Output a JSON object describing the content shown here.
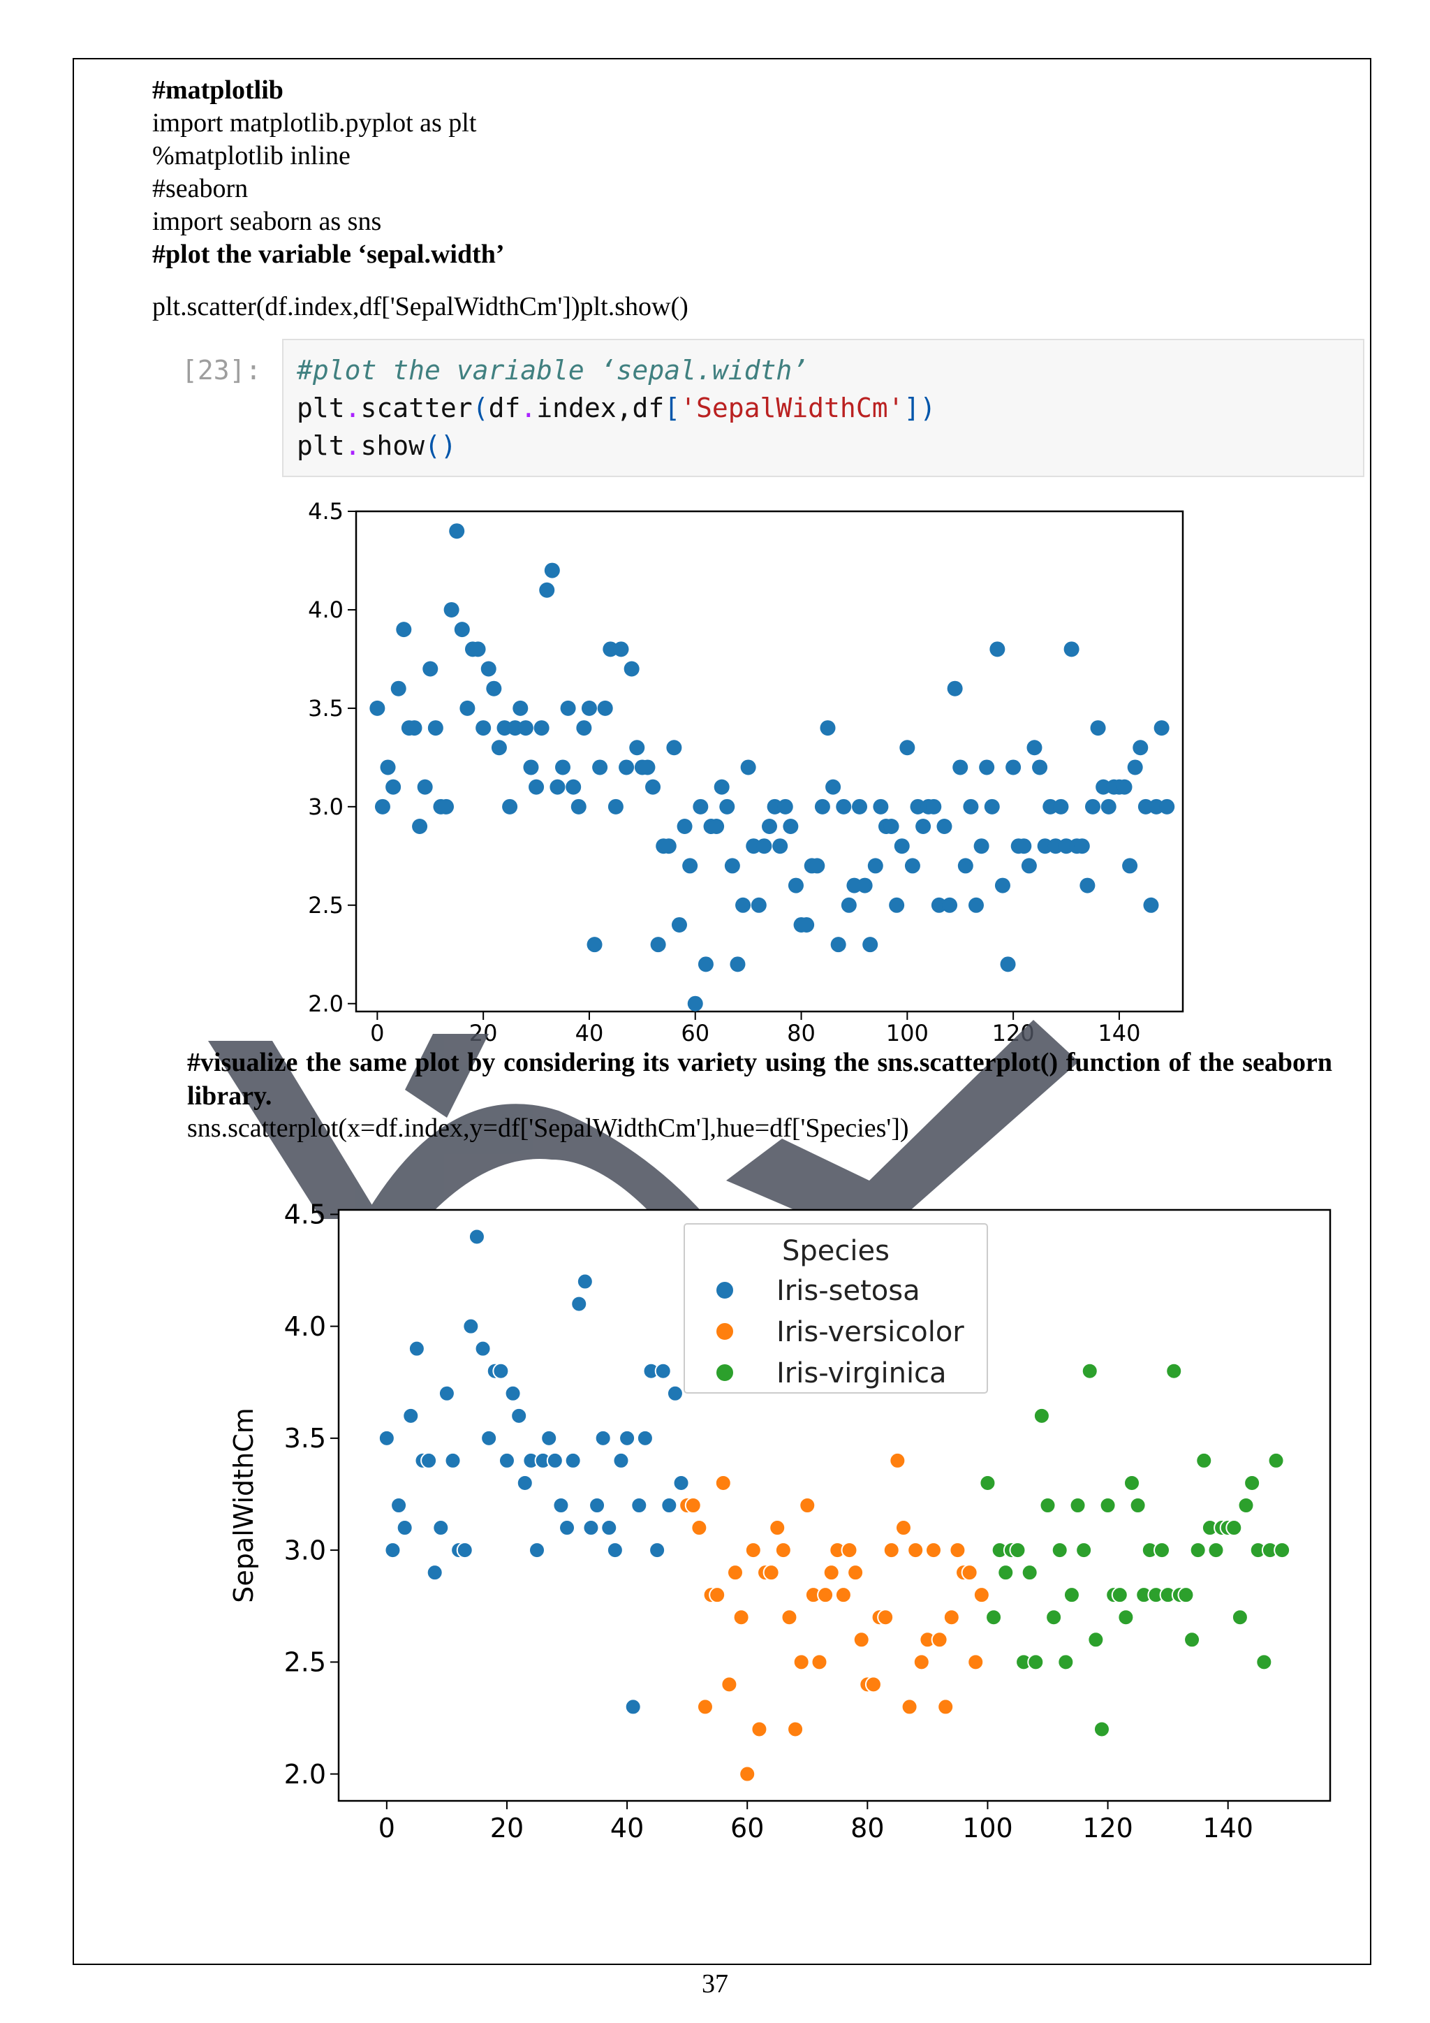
{
  "text": {
    "line1": "#matplotlib",
    "line2": "import matplotlib.pyplot as plt",
    "line3": "%matplotlib inline",
    "line4": "#seaborn",
    "line5": "import seaborn as sns",
    "line6": "#plot the variable ‘sepal.width’",
    "line7": "plt.scatter(df.index,df['SepalWidthCm'])plt.show()",
    "para2_bold": "#visualize the same plot by considering its variety using the sns.scatterplot() function of the seaborn library.",
    "para2_code": "sns.scatterplot(x=df.index,y=df['SepalWidthCm'],hue=df['Species'])",
    "page_number": "37"
  },
  "code_cell": {
    "prompt": "[23]:",
    "line1_comment": "#plot the variable ‘sepal.width’",
    "line2": {
      "a": "plt",
      "b": ".",
      "c": "scatter",
      "d": "(",
      "e": "df",
      "f": ".",
      "g": "index,df",
      "h": "[",
      "i": "'SepalWidthCm'",
      "j": "])"
    },
    "line3": {
      "a": "plt",
      "b": ".",
      "c": "show",
      "d": "()"
    }
  },
  "chart_data": [
    {
      "type": "scatter",
      "title": "",
      "xlabel": "",
      "ylabel": "",
      "xlim": [
        -4,
        152
      ],
      "ylim": [
        1.96,
        4.5
      ],
      "xticks": [
        0,
        20,
        40,
        60,
        80,
        100,
        120,
        140
      ],
      "yticks": [
        2.0,
        2.5,
        3.0,
        3.5,
        4.0,
        4.5
      ],
      "ytick_labels": [
        "2.0",
        "2.5",
        "3.0",
        "3.5",
        "4.0",
        "4.5"
      ],
      "color": "#1f77b4",
      "x": "index 0-149",
      "y": [
        3.5,
        3.0,
        3.2,
        3.1,
        3.6,
        3.9,
        3.4,
        3.4,
        2.9,
        3.1,
        3.7,
        3.4,
        3.0,
        3.0,
        4.0,
        4.4,
        3.9,
        3.5,
        3.8,
        3.8,
        3.4,
        3.7,
        3.6,
        3.3,
        3.4,
        3.0,
        3.4,
        3.5,
        3.4,
        3.2,
        3.1,
        3.4,
        4.1,
        4.2,
        3.1,
        3.2,
        3.5,
        3.1,
        3.0,
        3.4,
        3.5,
        2.3,
        3.2,
        3.5,
        3.8,
        3.0,
        3.8,
        3.2,
        3.7,
        3.3,
        3.2,
        3.2,
        3.1,
        2.3,
        2.8,
        2.8,
        3.3,
        2.4,
        2.9,
        2.7,
        2.0,
        3.0,
        2.2,
        2.9,
        2.9,
        3.1,
        3.0,
        2.7,
        2.2,
        2.5,
        3.2,
        2.8,
        2.5,
        2.8,
        2.9,
        3.0,
        2.8,
        3.0,
        2.9,
        2.6,
        2.4,
        2.4,
        2.7,
        2.7,
        3.0,
        3.4,
        3.1,
        2.3,
        3.0,
        2.5,
        2.6,
        3.0,
        2.6,
        2.3,
        2.7,
        3.0,
        2.9,
        2.9,
        2.5,
        2.8,
        3.3,
        2.7,
        3.0,
        2.9,
        3.0,
        3.0,
        2.5,
        2.9,
        2.5,
        3.6,
        3.2,
        2.7,
        3.0,
        2.5,
        2.8,
        3.2,
        3.0,
        3.8,
        2.6,
        2.2,
        3.2,
        2.8,
        2.8,
        2.7,
        3.3,
        3.2,
        2.8,
        3.0,
        2.8,
        3.0,
        2.8,
        3.8,
        2.8,
        2.8,
        2.6,
        3.0,
        3.4,
        3.1,
        3.0,
        3.1,
        3.1,
        3.1,
        2.7,
        3.2,
        3.3,
        3.0,
        2.5,
        3.0,
        3.4,
        3.0
      ]
    },
    {
      "type": "scatter",
      "title": "",
      "xlabel": "",
      "ylabel": "SepalWidthCm",
      "xlim": [
        -8,
        157
      ],
      "ylim": [
        1.88,
        4.52
      ],
      "xticks": [
        0,
        20,
        40,
        60,
        80,
        100,
        120,
        140
      ],
      "yticks": [
        2.0,
        2.5,
        3.0,
        3.5,
        4.0,
        4.5
      ],
      "ytick_labels": [
        "2.0",
        "2.5",
        "3.0",
        "3.5",
        "4.0",
        "4.5"
      ],
      "legend": {
        "title": "Species",
        "position": "top-center"
      },
      "series": [
        {
          "name": "Iris-setosa",
          "color": "#1f77b4",
          "range": [
            0,
            49
          ]
        },
        {
          "name": "Iris-versicolor",
          "color": "#ff7f0e",
          "range": [
            50,
            99
          ]
        },
        {
          "name": "Iris-virginica",
          "color": "#2ca02c",
          "range": [
            100,
            149
          ]
        }
      ],
      "y": "same as chart 1"
    }
  ]
}
